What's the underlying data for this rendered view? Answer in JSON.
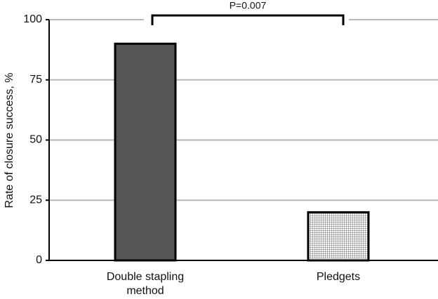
{
  "chart_data": {
    "type": "bar",
    "y_label": "Rate of closure success, %",
    "annotation": "P=0.007",
    "categories": [
      "Double stapling method",
      "Pledgets"
    ],
    "values": [
      90,
      20
    ],
    "colors": [
      "#555555",
      "#d4d4d4"
    ],
    "ylim": [
      0,
      100
    ],
    "yticks": [
      0,
      25,
      50,
      75,
      100
    ],
    "grid": true
  }
}
